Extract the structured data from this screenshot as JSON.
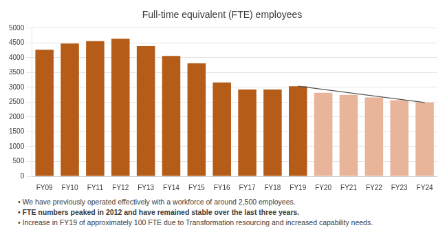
{
  "chart_data": {
    "type": "bar",
    "title": "Full-time equivalent (FTE) employees",
    "categories": [
      "FY09",
      "FY10",
      "FY11",
      "FY12",
      "FY13",
      "FY14",
      "FY15",
      "FY16",
      "FY17",
      "FY18",
      "FY19",
      "FY20",
      "FY21",
      "FY22",
      "FY23",
      "FY24"
    ],
    "series": [
      {
        "type": "bar",
        "values": [
          4270,
          4480,
          4560,
          4640,
          4390,
          4060,
          3810,
          3165,
          2930,
          2930,
          3040,
          2820,
          2750,
          2660,
          2570,
          2490
        ],
        "colors": [
          "#b55c18",
          "#b55c18",
          "#b55c18",
          "#b55c18",
          "#b55c18",
          "#b55c18",
          "#b55c18",
          "#b55c18",
          "#b55c18",
          "#b55c18",
          "#b55c18",
          "#e8b49a",
          "#e8b49a",
          "#e8b49a",
          "#e8b49a",
          "#e8b49a"
        ]
      },
      {
        "type": "line",
        "values": [
          null,
          null,
          null,
          null,
          null,
          null,
          null,
          null,
          null,
          null,
          3040,
          null,
          null,
          null,
          null,
          2490
        ],
        "color": "#555555"
      }
    ],
    "ylim": [
      0,
      5000
    ],
    "yticks": [
      0,
      500,
      1000,
      1500,
      2000,
      2500,
      3000,
      3500,
      4000,
      4500,
      5000
    ],
    "grid": true,
    "annotations": [
      "• We have previously operated effectively with a workforce of around 2,500 employees.",
      "• FTE numbers peaked in 2012 and have remained stable over the last three years.",
      "• Increase in FY19 of approximately 100 FTE due to Transformation resourcing and increased capability needs."
    ]
  }
}
